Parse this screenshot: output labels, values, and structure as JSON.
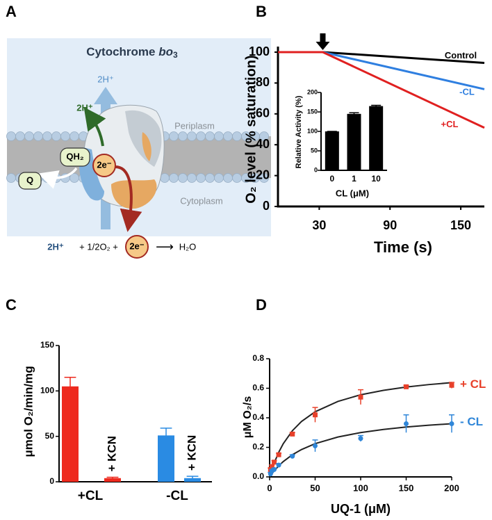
{
  "panels": [
    "A",
    "B",
    "C",
    "D"
  ],
  "diagram": {
    "title": {
      "text": "Cytochrome",
      "italic": "bo",
      "subscript": "3"
    },
    "proton_out": "2H⁺",
    "proton_pumped": "2H⁺",
    "quinol": "QH₂",
    "electrons": "2e⁻",
    "quinone": "Q",
    "periplasm": "Periplasm",
    "cytoplasm": "Cytoplasm",
    "equation": {
      "protons": "2H⁺",
      "oxygen": "+ 1/2O₂ +",
      "electrons": "2e⁻",
      "arrow": "⟶",
      "product": "H₂O"
    }
  },
  "chart_data": [
    {
      "type": "line",
      "ylabel": "O₂ level (% saturation)",
      "xlabel": "Time (s)",
      "x": [
        -5,
        33,
        170
      ],
      "xlim": [
        -5,
        170
      ],
      "xticks": [
        30,
        90,
        150
      ],
      "ylim": [
        0,
        100
      ],
      "yticks": [
        0,
        20,
        40,
        60,
        80,
        100
      ],
      "annotation_x": 33,
      "series": [
        {
          "name": "Control",
          "color": "#000000",
          "values": [
            100,
            100,
            93
          ]
        },
        {
          "name": "-CL",
          "color": "#2f7fe0",
          "values": [
            100,
            100,
            76
          ]
        },
        {
          "name": "+CL",
          "color": "#e02020",
          "values": [
            100,
            100,
            51
          ]
        }
      ]
    },
    {
      "type": "bar",
      "ylabel": "Relative Activity (%)",
      "xlabel": "CL (μM)",
      "categories": [
        "0",
        "1",
        "10"
      ],
      "values": [
        100,
        145,
        165
      ],
      "errors": [
        0,
        3,
        2
      ],
      "color": "#000000",
      "ylim": [
        0,
        200
      ],
      "yticks": [
        0,
        50,
        100,
        150,
        200
      ]
    },
    {
      "type": "bar",
      "ylabel": "μmol O₂/min/mg",
      "categories": [
        "+CL",
        "-CL"
      ],
      "ylim": [
        0,
        150
      ],
      "yticks": [
        0,
        50,
        100,
        150
      ],
      "series": [
        {
          "values": [
            105,
            51
          ],
          "errors": [
            10,
            8
          ],
          "colors": [
            "#ee2a1e",
            "#2a8be3"
          ]
        },
        {
          "name": "+ KCN",
          "values": [
            4,
            4
          ],
          "errors": [
            1,
            2
          ],
          "colors": [
            "#ee2a1e",
            "#2a8be3"
          ]
        }
      ]
    },
    {
      "type": "scatter",
      "xlabel": "UQ-1 (μM)",
      "ylabel": "μM O₂/s",
      "xlim": [
        0,
        200
      ],
      "xticks": [
        0,
        50,
        100,
        150,
        200
      ],
      "ylim": [
        0,
        0.8
      ],
      "yticks": [
        {
          "value": 0,
          "label": "0.0"
        },
        0.2,
        0.4,
        0.6,
        0.8
      ],
      "series": [
        {
          "name": "+ CL",
          "color": "#e8402a",
          "marker": "square",
          "x": [
            1,
            2.5,
            5,
            10,
            25,
            50,
            100,
            150,
            200
          ],
          "values": [
            0.05,
            0.07,
            0.1,
            0.15,
            0.29,
            0.42,
            0.54,
            0.61,
            0.62
          ],
          "errors": [
            0.01,
            0.01,
            0.01,
            0.01,
            0.01,
            0.05,
            0.05,
            0.01,
            0.02
          ],
          "fit": {
            "x": [
              0,
              5,
              10,
              15,
              25,
              35,
              50,
              75,
              100,
              125,
              150,
              175,
              200
            ],
            "values": [
              0,
              0.094,
              0.167,
              0.225,
              0.3125,
              0.375,
              0.441,
              0.511,
              0.556,
              0.586,
              0.608,
              0.625,
              0.638
            ]
          }
        },
        {
          "name": "- CL",
          "color": "#2f86d8",
          "marker": "circle",
          "x": [
            1,
            2.5,
            5,
            10,
            25,
            50,
            100,
            150,
            200
          ],
          "values": [
            0.02,
            0.04,
            0.05,
            0.08,
            0.14,
            0.21,
            0.26,
            0.36,
            0.36
          ],
          "errors": [
            0.01,
            0.01,
            0.01,
            0.01,
            0.01,
            0.04,
            0.02,
            0.06,
            0.06
          ],
          "fit": {
            "x": [
              0,
              5,
              10,
              15,
              25,
              35,
              50,
              75,
              100,
              125,
              150,
              175,
              200
            ],
            "values": [
              0,
              0.041,
              0.075,
              0.104,
              0.15,
              0.185,
              0.225,
              0.27,
              0.3,
              0.321,
              0.3375,
              0.35,
              0.36
            ]
          }
        }
      ]
    }
  ]
}
